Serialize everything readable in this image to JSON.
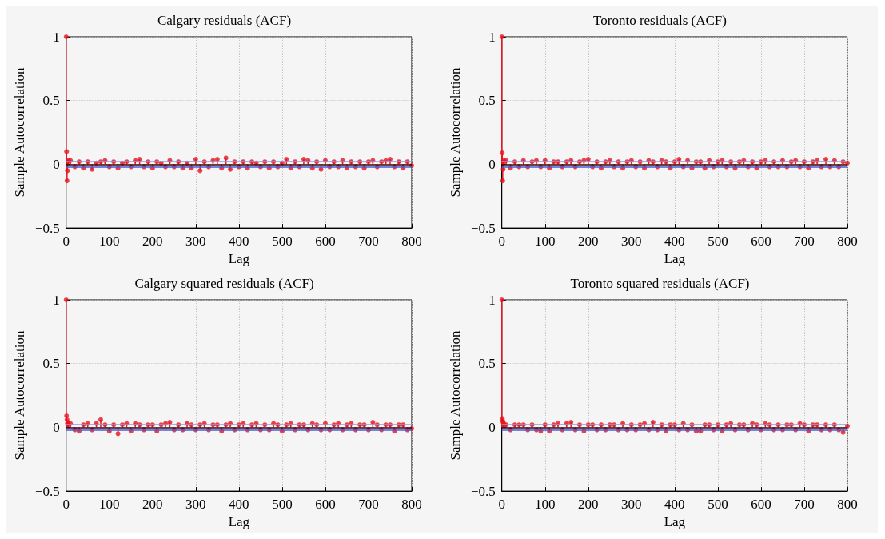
{
  "chart_data": [
    {
      "type": "lollipop",
      "title": "Calgary residuals (ACF)",
      "xlabel": "Lag",
      "ylabel": "Sample Autocorrelation",
      "xlim": [
        0,
        800
      ],
      "ylim": [
        -0.5,
        1
      ],
      "xticks": [
        0,
        100,
        200,
        300,
        400,
        500,
        600,
        700,
        800
      ],
      "yticks": [
        -0.5,
        0,
        0.5,
        1
      ],
      "grid": true,
      "marker": "circle",
      "color": "#e8141e",
      "x": [
        0,
        1,
        2,
        3,
        4,
        5,
        10,
        20,
        30,
        40,
        50,
        60,
        70,
        80,
        90,
        100,
        110,
        120,
        130,
        140,
        150,
        160,
        170,
        180,
        190,
        200,
        210,
        220,
        230,
        240,
        250,
        260,
        270,
        280,
        290,
        300,
        310,
        320,
        330,
        340,
        350,
        360,
        370,
        380,
        390,
        400,
        410,
        420,
        430,
        440,
        450,
        460,
        470,
        480,
        490,
        500,
        510,
        520,
        530,
        540,
        550,
        560,
        570,
        580,
        590,
        600,
        610,
        620,
        630,
        640,
        650,
        660,
        670,
        680,
        690,
        700,
        710,
        720,
        730,
        740,
        750,
        760,
        770,
        780,
        790,
        800
      ],
      "values": [
        1,
        0.1,
        -0.13,
        -0.05,
        0.02,
        0.03,
        0.03,
        -0.02,
        0.02,
        -0.03,
        0.02,
        -0.04,
        0.01,
        0.02,
        0.03,
        -0.02,
        0.02,
        -0.03,
        0.01,
        0.02,
        -0.02,
        0.03,
        0.04,
        -0.02,
        0.02,
        -0.03,
        0.02,
        0.01,
        -0.02,
        0.03,
        -0.02,
        0.02,
        -0.03,
        0.01,
        -0.03,
        0.04,
        -0.05,
        0.02,
        -0.02,
        0.03,
        0.04,
        -0.03,
        0.05,
        -0.04,
        0.02,
        -0.02,
        0.02,
        -0.03,
        0.02,
        0.01,
        -0.02,
        0.02,
        -0.03,
        0.02,
        -0.02,
        0.01,
        0.04,
        -0.03,
        0.02,
        -0.02,
        0.04,
        0.03,
        -0.03,
        0.02,
        -0.04,
        0.03,
        -0.02,
        0.02,
        -0.02,
        0.03,
        -0.03,
        0.02,
        -0.02,
        0.02,
        -0.03,
        0.02,
        0.03,
        -0.02,
        0.02,
        0.03,
        0.04,
        -0.02,
        0.02,
        -0.03,
        0.02,
        -0.01
      ],
      "ref_lines": [
        {
          "axis": "y",
          "value": 0.02,
          "color": "#8c9ae0"
        },
        {
          "axis": "y",
          "value": -0.02,
          "color": "#4a5bd6"
        },
        {
          "axis": "y",
          "value": 0,
          "color": "#3a0a0a"
        }
      ]
    },
    {
      "type": "lollipop",
      "title": "Toronto residuals (ACF)",
      "xlabel": "Lag",
      "ylabel": "Sample Autocorrelation",
      "xlim": [
        0,
        800
      ],
      "ylim": [
        -0.5,
        1
      ],
      "xticks": [
        0,
        100,
        200,
        300,
        400,
        500,
        600,
        700,
        800
      ],
      "yticks": [
        -0.5,
        0,
        0.5,
        1
      ],
      "grid": true,
      "marker": "circle",
      "color": "#e8141e",
      "x": [
        0,
        1,
        2,
        3,
        4,
        5,
        10,
        20,
        30,
        40,
        50,
        60,
        70,
        80,
        90,
        100,
        110,
        120,
        130,
        140,
        150,
        160,
        170,
        180,
        190,
        200,
        210,
        220,
        230,
        240,
        250,
        260,
        270,
        280,
        290,
        300,
        310,
        320,
        330,
        340,
        350,
        360,
        370,
        380,
        390,
        400,
        410,
        420,
        430,
        440,
        450,
        460,
        470,
        480,
        490,
        500,
        510,
        520,
        530,
        540,
        550,
        560,
        570,
        580,
        590,
        600,
        610,
        620,
        630,
        640,
        650,
        660,
        670,
        680,
        690,
        700,
        710,
        720,
        730,
        740,
        750,
        760,
        770,
        780,
        790,
        800
      ],
      "values": [
        1,
        0.09,
        -0.13,
        -0.04,
        0.03,
        0.02,
        0.03,
        -0.03,
        0.02,
        -0.02,
        0.03,
        -0.02,
        0.02,
        0.03,
        -0.02,
        0.03,
        -0.03,
        0.02,
        0.02,
        -0.02,
        0.02,
        0.03,
        -0.02,
        0.02,
        0.03,
        0.04,
        -0.02,
        0.02,
        -0.03,
        0.02,
        0.03,
        -0.02,
        0.02,
        -0.03,
        0.02,
        0.03,
        -0.02,
        0.02,
        -0.03,
        0.03,
        0.02,
        -0.02,
        0.03,
        0.02,
        -0.03,
        0.02,
        0.04,
        -0.02,
        0.03,
        -0.03,
        0.02,
        0.02,
        -0.03,
        0.03,
        -0.02,
        0.02,
        0.03,
        -0.02,
        0.02,
        -0.03,
        0.02,
        0.03,
        -0.02,
        0.02,
        -0.03,
        0.02,
        0.03,
        -0.02,
        0.02,
        -0.02,
        0.03,
        -0.02,
        0.02,
        0.03,
        -0.02,
        0.02,
        -0.03,
        0.02,
        0.03,
        -0.02,
        0.04,
        -0.02,
        0.03,
        -0.02,
        0.02,
        0.01
      ],
      "ref_lines": [
        {
          "axis": "y",
          "value": 0.02,
          "color": "#8c9ae0"
        },
        {
          "axis": "y",
          "value": -0.02,
          "color": "#4a5bd6"
        },
        {
          "axis": "y",
          "value": 0,
          "color": "#3a0a0a"
        }
      ]
    },
    {
      "type": "lollipop",
      "title": "Calgary squared residuals (ACF)",
      "xlabel": "Lag",
      "ylabel": "Sample Autocorrelation",
      "xlim": [
        0,
        800
      ],
      "ylim": [
        -0.5,
        1
      ],
      "xticks": [
        0,
        100,
        200,
        300,
        400,
        500,
        600,
        700,
        800
      ],
      "yticks": [
        -0.5,
        0,
        0.5,
        1
      ],
      "grid": true,
      "marker": "circle",
      "color": "#e8141e",
      "x": [
        0,
        1,
        2,
        3,
        4,
        5,
        10,
        20,
        30,
        40,
        50,
        60,
        70,
        80,
        90,
        100,
        110,
        120,
        130,
        140,
        150,
        160,
        170,
        180,
        190,
        200,
        210,
        220,
        230,
        240,
        250,
        260,
        270,
        280,
        290,
        300,
        310,
        320,
        330,
        340,
        350,
        360,
        370,
        380,
        390,
        400,
        410,
        420,
        430,
        440,
        450,
        460,
        470,
        480,
        490,
        500,
        510,
        520,
        530,
        540,
        550,
        560,
        570,
        580,
        590,
        600,
        610,
        620,
        630,
        640,
        650,
        660,
        670,
        680,
        690,
        700,
        710,
        720,
        730,
        740,
        750,
        760,
        770,
        780,
        790,
        800
      ],
      "values": [
        1,
        0.09,
        0.06,
        0.03,
        0.04,
        0.02,
        0.03,
        -0.02,
        -0.03,
        0.02,
        0.03,
        -0.02,
        0.03,
        0.06,
        0.02,
        -0.03,
        0.02,
        -0.05,
        0.02,
        0.03,
        -0.03,
        0.03,
        0.02,
        -0.02,
        0.02,
        0.02,
        -0.03,
        0.02,
        0.03,
        0.04,
        -0.02,
        0.02,
        -0.02,
        0.03,
        0.02,
        -0.02,
        0.02,
        0.03,
        -0.02,
        0.02,
        0.02,
        -0.03,
        0.02,
        0.03,
        -0.02,
        0.02,
        0.03,
        -0.02,
        0.02,
        0.03,
        -0.02,
        0.02,
        -0.02,
        0.03,
        0.02,
        -0.03,
        0.02,
        0.03,
        -0.02,
        0.02,
        0.02,
        -0.02,
        0.03,
        0.02,
        -0.02,
        0.03,
        -0.02,
        0.02,
        0.03,
        -0.02,
        0.02,
        0.03,
        -0.02,
        0.02,
        0.02,
        -0.02,
        0.04,
        0.02,
        -0.02,
        0.02,
        0.02,
        -0.03,
        0.02,
        0.02,
        -0.02,
        -0.01
      ],
      "ref_lines": [
        {
          "axis": "y",
          "value": 0.02,
          "color": "#8c9ae0"
        },
        {
          "axis": "y",
          "value": -0.02,
          "color": "#4a5bd6"
        },
        {
          "axis": "y",
          "value": 0,
          "color": "#3a0a0a"
        }
      ]
    },
    {
      "type": "lollipop",
      "title": "Toronto squared residuals (ACF)",
      "xlabel": "Lag",
      "ylabel": "Sample Autocorrelation",
      "xlim": [
        0,
        800
      ],
      "ylim": [
        -0.5,
        1
      ],
      "xticks": [
        0,
        100,
        200,
        300,
        400,
        500,
        600,
        700,
        800
      ],
      "yticks": [
        -0.5,
        0,
        0.5,
        1
      ],
      "grid": true,
      "marker": "circle",
      "color": "#e8141e",
      "x": [
        0,
        1,
        2,
        3,
        4,
        5,
        10,
        20,
        30,
        40,
        50,
        60,
        70,
        80,
        90,
        100,
        110,
        120,
        130,
        140,
        150,
        160,
        170,
        180,
        190,
        200,
        210,
        220,
        230,
        240,
        250,
        260,
        270,
        280,
        290,
        300,
        310,
        320,
        330,
        340,
        350,
        360,
        370,
        380,
        390,
        400,
        410,
        420,
        430,
        440,
        450,
        460,
        470,
        480,
        490,
        500,
        510,
        520,
        530,
        540,
        550,
        560,
        570,
        580,
        590,
        600,
        610,
        620,
        630,
        640,
        650,
        660,
        670,
        680,
        690,
        700,
        710,
        720,
        730,
        740,
        750,
        760,
        770,
        780,
        790,
        800
      ],
      "values": [
        1,
        0.07,
        0.05,
        0.04,
        0.03,
        0.02,
        0.02,
        -0.02,
        0.02,
        0.02,
        0.02,
        -0.02,
        0.02,
        -0.02,
        -0.03,
        0.02,
        -0.03,
        0.02,
        0.03,
        -0.02,
        0.03,
        0.04,
        -0.02,
        0.02,
        -0.03,
        0.02,
        0.02,
        -0.02,
        0.02,
        -0.02,
        0.02,
        0.02,
        -0.02,
        0.03,
        -0.02,
        0.02,
        -0.02,
        0.02,
        0.03,
        -0.02,
        0.04,
        -0.02,
        0.02,
        -0.03,
        0.02,
        0.02,
        -0.02,
        0.03,
        -0.02,
        0.02,
        -0.03,
        -0.03,
        0.02,
        0.02,
        -0.02,
        0.02,
        -0.03,
        0.02,
        0.03,
        -0.02,
        0.02,
        0.02,
        -0.02,
        0.03,
        0.02,
        -0.02,
        0.03,
        0.02,
        -0.02,
        0.02,
        -0.02,
        0.02,
        0.02,
        -0.02,
        0.03,
        0.02,
        -0.03,
        0.02,
        0.02,
        -0.02,
        0.02,
        -0.02,
        0.02,
        -0.02,
        -0.04,
        0.01
      ],
      "ref_lines": [
        {
          "axis": "y",
          "value": 0.02,
          "color": "#8c9ae0"
        },
        {
          "axis": "y",
          "value": -0.02,
          "color": "#4a5bd6"
        },
        {
          "axis": "y",
          "value": 0,
          "color": "#3a0a0a"
        }
      ]
    }
  ]
}
